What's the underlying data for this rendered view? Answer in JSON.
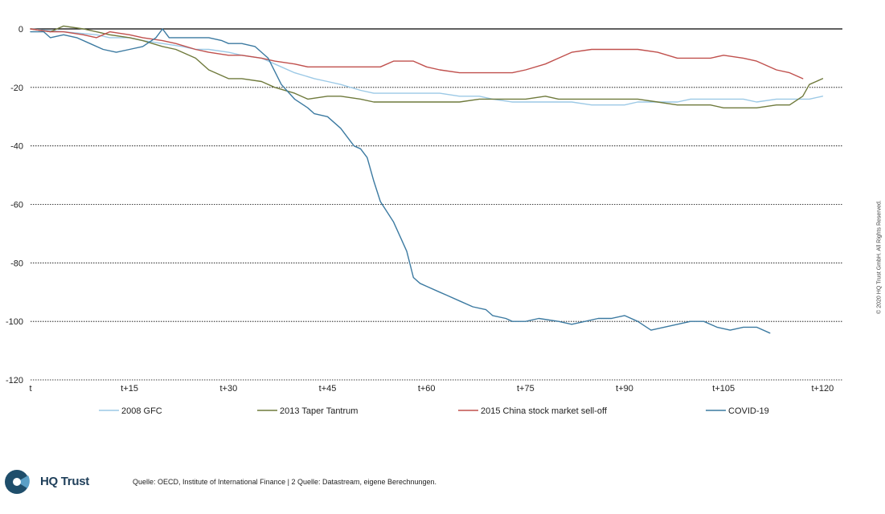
{
  "brand": {
    "name": "HQ Trust",
    "color": "#1f4e6b",
    "accent": "#5b9fc6"
  },
  "copyright": "© 2020 HQ Trust GmbH. All Rights Reserved.",
  "source_note": "Quelle: OECD, Institute of International Finance | 2 Quelle: Datastream, eigene Berechnungen.",
  "chart_data": {
    "type": "line",
    "title": "",
    "xlabel": "",
    "ylabel": "",
    "xlim": [
      0,
      123
    ],
    "ylim": [
      -120,
      0
    ],
    "y_ticks": [
      0,
      -20,
      -40,
      -60,
      -80,
      -100,
      -120
    ],
    "x_ticks": [
      {
        "value": 0,
        "label": "t"
      },
      {
        "value": 15,
        "label": "t+15"
      },
      {
        "value": 30,
        "label": "t+30"
      },
      {
        "value": 45,
        "label": "t+45"
      },
      {
        "value": 60,
        "label": "t+60"
      },
      {
        "value": 75,
        "label": "t+75"
      },
      {
        "value": 90,
        "label": "t+90"
      },
      {
        "value": 105,
        "label": "t+105"
      },
      {
        "value": 120,
        "label": "t+120"
      }
    ],
    "grid": "horizontal dotted",
    "legend_position": "bottom",
    "series": [
      {
        "name": "2008 GFC",
        "color": "#9cc9e6",
        "x": [
          0,
          5,
          10,
          12,
          15,
          17,
          20,
          23,
          25,
          27,
          30,
          32,
          35,
          38,
          40,
          43,
          45,
          47,
          50,
          52,
          55,
          58,
          60,
          62,
          65,
          68,
          70,
          73,
          75,
          78,
          80,
          82,
          85,
          87,
          90,
          92,
          95,
          98,
          100,
          103,
          105,
          108,
          110,
          113,
          115,
          118,
          120
        ],
        "y": [
          0,
          -1,
          -2,
          -3,
          -3,
          -4,
          -5,
          -6,
          -7,
          -7,
          -8,
          -9,
          -10,
          -13,
          -15,
          -17,
          -18,
          -19,
          -21,
          -22,
          -22,
          -22,
          -22,
          -22,
          -23,
          -23,
          -24,
          -25,
          -25,
          -25,
          -25,
          -25,
          -26,
          -26,
          -26,
          -25,
          -25,
          -25,
          -24,
          -24,
          -24,
          -24,
          -25,
          -24,
          -24,
          -24,
          -23
        ]
      },
      {
        "name": "2013 Taper Tantrum",
        "color": "#6f7a3c",
        "x": [
          0,
          3,
          5,
          8,
          10,
          12,
          15,
          17,
          20,
          22,
          25,
          27,
          30,
          32,
          35,
          37,
          40,
          42,
          45,
          47,
          50,
          52,
          55,
          58,
          60,
          62,
          65,
          68,
          70,
          73,
          75,
          78,
          80,
          82,
          85,
          87,
          90,
          92,
          95,
          98,
          100,
          103,
          105,
          108,
          110,
          113,
          115,
          117,
          118,
          120
        ],
        "y": [
          0,
          -1,
          1,
          0,
          -1,
          -2,
          -3,
          -4,
          -6,
          -7,
          -10,
          -14,
          -17,
          -17,
          -18,
          -20,
          -22,
          -24,
          -23,
          -23,
          -24,
          -25,
          -25,
          -25,
          -25,
          -25,
          -25,
          -24,
          -24,
          -24,
          -24,
          -23,
          -24,
          -24,
          -24,
          -24,
          -24,
          -24,
          -25,
          -26,
          -26,
          -26,
          -27,
          -27,
          -27,
          -26,
          -26,
          -23,
          -19,
          -17
        ]
      },
      {
        "name": "2015 China stock market sell-off",
        "color": "#c0504d",
        "x": [
          0,
          3,
          5,
          8,
          10,
          12,
          15,
          17,
          20,
          22,
          25,
          27,
          30,
          32,
          35,
          37,
          40,
          42,
          45,
          47,
          50,
          53,
          55,
          58,
          60,
          62,
          65,
          68,
          70,
          73,
          75,
          78,
          80,
          82,
          85,
          87,
          90,
          92,
          95,
          98,
          100,
          103,
          105,
          108,
          110,
          113,
          115,
          117
        ],
        "y": [
          0,
          -1,
          -1,
          -2,
          -3,
          -1,
          -2,
          -3,
          -4,
          -5,
          -7,
          -8,
          -9,
          -9,
          -10,
          -11,
          -12,
          -13,
          -13,
          -13,
          -13,
          -13,
          -11,
          -11,
          -13,
          -14,
          -15,
          -15,
          -15,
          -15,
          -14,
          -12,
          -10,
          -8,
          -7,
          -7,
          -7,
          -7,
          -8,
          -10,
          -10,
          -10,
          -9,
          -10,
          -11,
          -14,
          -15,
          -17
        ]
      },
      {
        "name": "COVID-19",
        "color": "#3c7aa1",
        "x": [
          0,
          2,
          3,
          5,
          7,
          9,
          11,
          13,
          15,
          17,
          19,
          20,
          21,
          22,
          25,
          27,
          29,
          30,
          32,
          34,
          36,
          38,
          40,
          42,
          43,
          45,
          47,
          48,
          49,
          50,
          51,
          52,
          53,
          55,
          56,
          57,
          58,
          59,
          60,
          62,
          63,
          65,
          67,
          69,
          70,
          72,
          73,
          75,
          77,
          80,
          82,
          84,
          86,
          88,
          90,
          92,
          94,
          96,
          98,
          100,
          102,
          104,
          106,
          108,
          110,
          112
        ],
        "y": [
          -1,
          -1,
          -3,
          -2,
          -3,
          -5,
          -7,
          -8,
          -7,
          -6,
          -3,
          0,
          -3,
          -3,
          -3,
          -3,
          -4,
          -5,
          -5,
          -6,
          -10,
          -19,
          -24,
          -27,
          -29,
          -30,
          -34,
          -37,
          -40,
          -41,
          -44,
          -52,
          -59,
          -66,
          -71,
          -76,
          -85,
          -87,
          -88,
          -90,
          -91,
          -93,
          -95,
          -96,
          -98,
          -99,
          -100,
          -100,
          -99,
          -100,
          -101,
          -100,
          -99,
          -99,
          -98,
          -100,
          -103,
          -102,
          -101,
          -100,
          -100,
          -102,
          -103,
          -102,
          -102,
          -104
        ]
      }
    ]
  }
}
